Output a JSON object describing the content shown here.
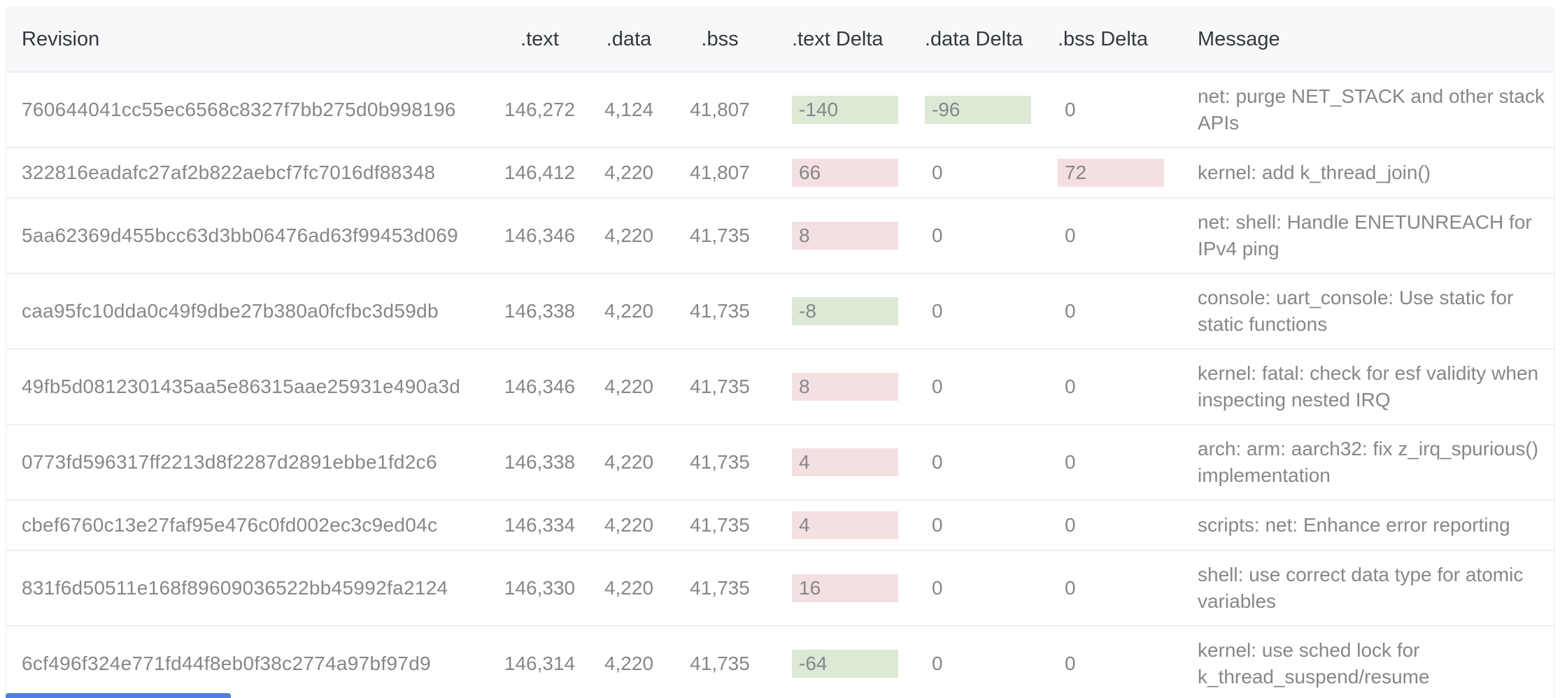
{
  "table": {
    "headers": [
      {
        "label": "Revision"
      },
      {
        "label": ".text"
      },
      {
        "label": ".data"
      },
      {
        "label": ".bss"
      },
      {
        "label": ".text Delta"
      },
      {
        "label": ".data Delta"
      },
      {
        "label": ".bss Delta"
      },
      {
        "label": "Message"
      }
    ],
    "rows": [
      {
        "revision": "760644041cc55ec6568c8327f7bb275d0b998196",
        "text": "146,272",
        "data": "4,124",
        "bss": "41,807",
        "text_delta": "-140",
        "data_delta": "-96",
        "bss_delta": "0",
        "message": "net: purge NET_STACK and other stack APIs"
      },
      {
        "revision": "322816eadafc27af2b822aebcf7fc7016df88348",
        "text": "146,412",
        "data": "4,220",
        "bss": "41,807",
        "text_delta": "66",
        "data_delta": "0",
        "bss_delta": "72",
        "message": "kernel: add k_thread_join()"
      },
      {
        "revision": "5aa62369d455bcc63d3bb06476ad63f99453d069",
        "text": "146,346",
        "data": "4,220",
        "bss": "41,735",
        "text_delta": "8",
        "data_delta": "0",
        "bss_delta": "0",
        "message": "net: shell: Handle ENETUNREACH for IPv4 ping"
      },
      {
        "revision": "caa95fc10dda0c49f9dbe27b380a0fcfbc3d59db",
        "text": "146,338",
        "data": "4,220",
        "bss": "41,735",
        "text_delta": "-8",
        "data_delta": "0",
        "bss_delta": "0",
        "message": "console: uart_console: Use static for static functions"
      },
      {
        "revision": "49fb5d0812301435aa5e86315aae25931e490a3d",
        "text": "146,346",
        "data": "4,220",
        "bss": "41,735",
        "text_delta": "8",
        "data_delta": "0",
        "bss_delta": "0",
        "message": "kernel: fatal: check for esf validity when inspecting nested IRQ"
      },
      {
        "revision": "0773fd596317ff2213d8f2287d2891ebbe1fd2c6",
        "text": "146,338",
        "data": "4,220",
        "bss": "41,735",
        "text_delta": "4",
        "data_delta": "0",
        "bss_delta": "0",
        "message": "arch: arm: aarch32: fix z_irq_spurious() implementation"
      },
      {
        "revision": "cbef6760c13e27faf95e476c0fd002ec3c9ed04c",
        "text": "146,334",
        "data": "4,220",
        "bss": "41,735",
        "text_delta": "4",
        "data_delta": "0",
        "bss_delta": "0",
        "message": "scripts: net: Enhance error reporting"
      },
      {
        "revision": "831f6d50511e168f89609036522bb45992fa2124",
        "text": "146,330",
        "data": "4,220",
        "bss": "41,735",
        "text_delta": "16",
        "data_delta": "0",
        "bss_delta": "0",
        "message": "shell: use correct data type for atomic variables"
      },
      {
        "revision": "6cf496f324e771fd44f8eb0f38c2774a97bf97d9",
        "text": "146,314",
        "data": "4,220",
        "bss": "41,735",
        "text_delta": "-64",
        "data_delta": "0",
        "bss_delta": "0",
        "message": "kernel: use sched lock for k_thread_suspend/resume"
      }
    ]
  },
  "colors": {
    "header_bg": "#f7f8fa",
    "header_text": "#35383b",
    "body_text": "#85878a",
    "row_border": "#edeff1",
    "outer_border": "#eef0f2",
    "delta_decrease_bg": "#dbe9d5",
    "delta_increase_bg": "#f4dfe1",
    "bottom_bar_blue": "#4e80e1"
  }
}
